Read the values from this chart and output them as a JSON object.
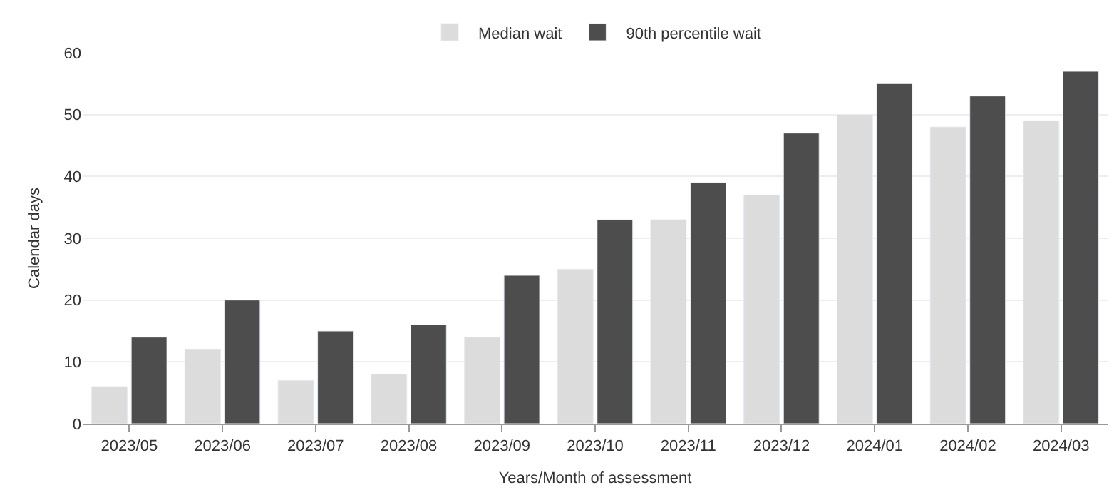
{
  "chart_data": {
    "type": "bar",
    "xlabel": "Years/Month of assessment",
    "ylabel": "Calendar days",
    "categories": [
      "2023/05",
      "2023/06",
      "2023/07",
      "2023/08",
      "2023/09",
      "2023/10",
      "2023/11",
      "2023/12",
      "2024/01",
      "2024/02",
      "2024/03"
    ],
    "series": [
      {
        "name": "Median wait",
        "color": "#dcdcdc",
        "values": [
          6,
          12,
          7,
          8,
          14,
          25,
          33,
          37,
          50,
          48,
          49
        ]
      },
      {
        "name": "90th percentile wait",
        "color": "#4d4d4d",
        "values": [
          14,
          20,
          15,
          16,
          24,
          33,
          39,
          47,
          55,
          53,
          57
        ]
      }
    ],
    "ylim": [
      0,
      60
    ],
    "yticks": [
      0,
      10,
      20,
      30,
      40,
      50,
      60
    ],
    "grid": "y",
    "legend": "top"
  }
}
